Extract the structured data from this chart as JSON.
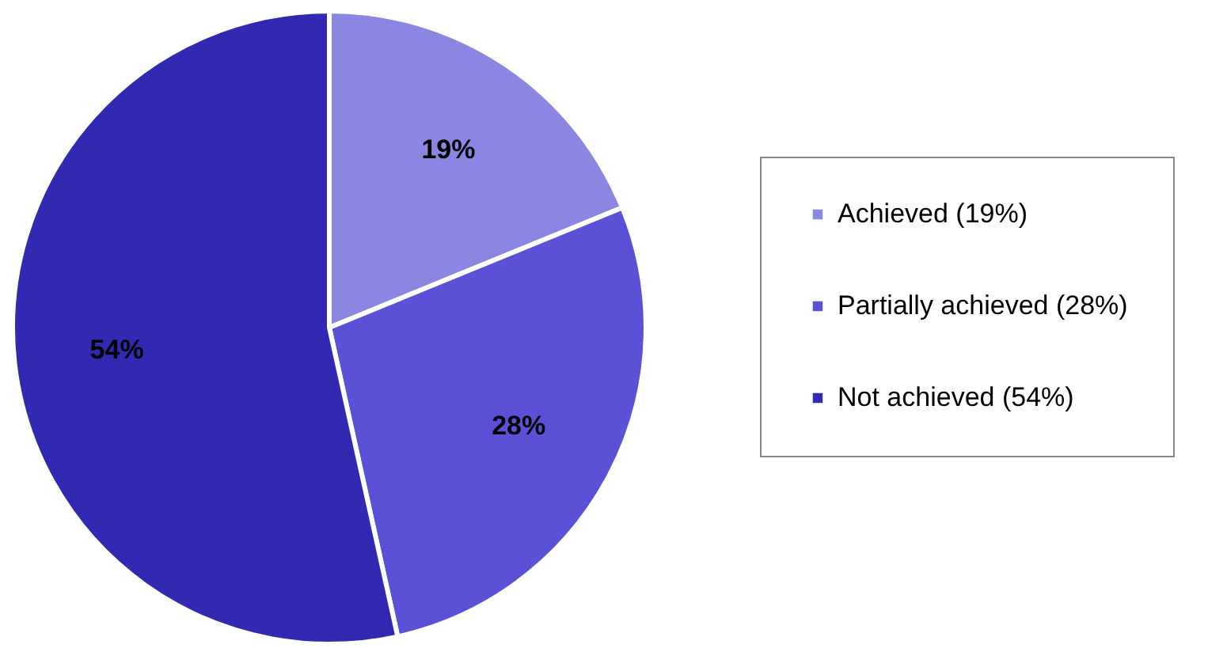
{
  "chart_data": {
    "type": "pie",
    "categories": [
      "Achieved (19%)",
      "Partially achieved (28%)",
      "Not achieved (54%)"
    ],
    "values": [
      19,
      28,
      54
    ],
    "colors": [
      "#8b86e2",
      "#5a51d6",
      "#3229b3"
    ],
    "value_labels": [
      "19%",
      "28%",
      "54%"
    ],
    "legend": "right"
  }
}
